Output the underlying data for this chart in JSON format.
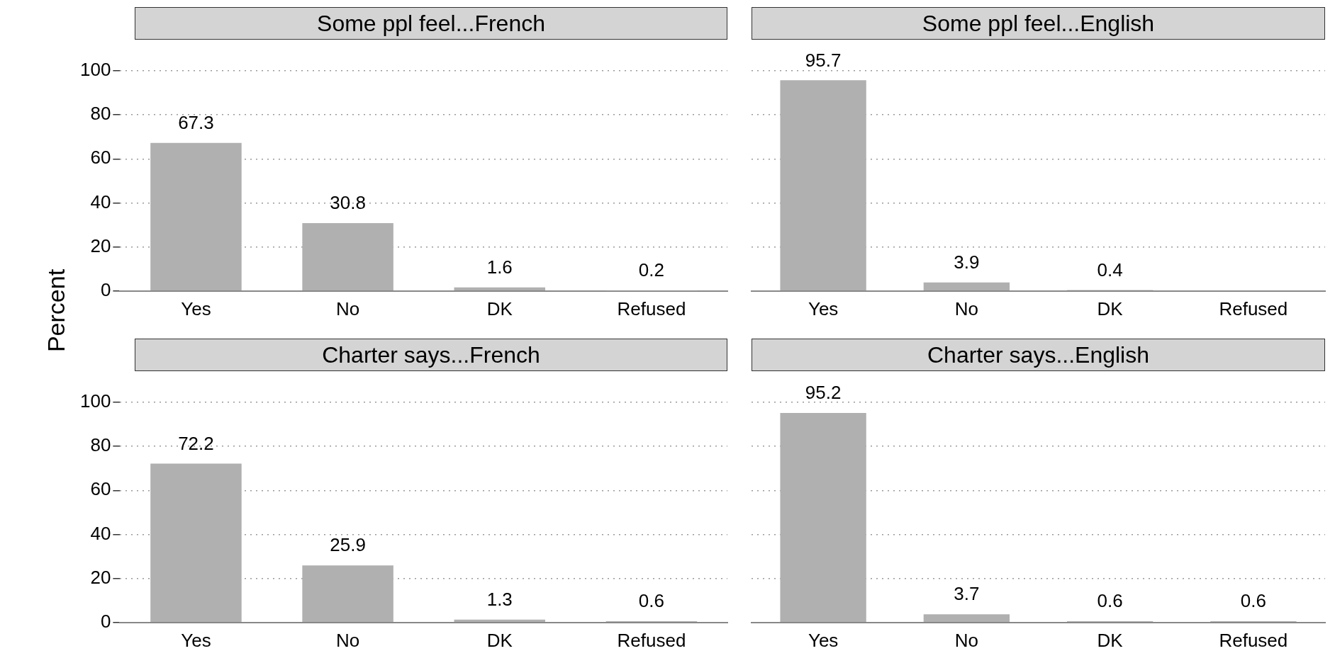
{
  "chart_data": [
    {
      "type": "bar",
      "title": "Some ppl feel...French",
      "ylabel": "Percent",
      "categories": [
        "Yes",
        "No",
        "DK",
        "Refused"
      ],
      "values": [
        67.3,
        30.8,
        1.6,
        0.2
      ],
      "color": "#b0b0b0",
      "ylim": [
        0,
        100
      ],
      "yticks": [
        0,
        20,
        40,
        60,
        80,
        100
      ],
      "grid": "y",
      "data_labels": true
    },
    {
      "type": "bar",
      "title": "Some ppl feel...English",
      "categories": [
        "Yes",
        "No",
        "DK",
        "Refused"
      ],
      "values": [
        95.7,
        3.9,
        0.4,
        0
      ],
      "value_labels": [
        "95.7",
        "3.9",
        "0.4",
        null
      ],
      "color": "#b0b0b0",
      "ylim": [
        0,
        100
      ],
      "yticks": [
        0,
        20,
        40,
        60,
        80,
        100
      ],
      "grid": "y",
      "tick_labels": "x"
    },
    {
      "type": "bar",
      "title": "Charter says...French",
      "categories": [
        "Yes",
        "No",
        "DK",
        "Refused"
      ],
      "values": [
        72.2,
        25.9,
        1.3,
        0.6
      ],
      "color": "#b0b0b0",
      "ylim": [
        0,
        100
      ],
      "yticks": [
        0,
        20,
        40,
        60,
        80,
        100
      ],
      "grid": "y",
      "data_labels": true
    },
    {
      "type": "bar",
      "title": "Charter says...English",
      "categories": [
        "Yes",
        "No",
        "DK",
        "Refused"
      ],
      "values": [
        95.2,
        3.7,
        0.6,
        0.6
      ],
      "color": "#b0b0b0",
      "ylim": [
        0,
        100
      ],
      "yticks": [
        0,
        20,
        40,
        60,
        80,
        100
      ],
      "grid": "y",
      "tick_labels": "x",
      "data_labels": true
    }
  ]
}
